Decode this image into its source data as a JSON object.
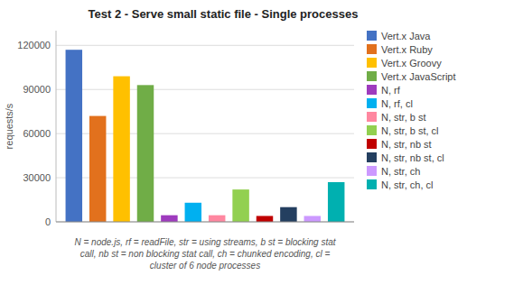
{
  "chart_data": {
    "type": "bar",
    "title": "Test 2 - Serve small static file - Single processes",
    "ylabel": "requests/s",
    "footnote": "N = node.js, rf = readFile, str = using streams, b st = blocking stat\ncall, nb st = non blocking stat call, ch = chunked encoding, cl =\ncluster of 6 node processes",
    "categories": [
      null
    ],
    "series": [
      {
        "name": "Vert.x Java",
        "color": "#4472C4",
        "values": [
          117000
        ]
      },
      {
        "name": "Vert.x Ruby",
        "color": "#E2711D",
        "values": [
          72000
        ]
      },
      {
        "name": "Vert.x Groovy",
        "color": "#FFC000",
        "values": [
          99000
        ]
      },
      {
        "name": "Vert.x JavaScript",
        "color": "#70AD47",
        "values": [
          93000
        ]
      },
      {
        "name": "N, rf",
        "color": "#9E3BBE",
        "values": [
          4500
        ]
      },
      {
        "name": "N, rf, cl",
        "color": "#00B0F0",
        "values": [
          13000
        ]
      },
      {
        "name": "N, str, b st",
        "color": "#FF87A0",
        "values": [
          4500
        ]
      },
      {
        "name": "N, str, b st, cl",
        "color": "#92D050",
        "values": [
          22000
        ]
      },
      {
        "name": "N, str, nb st",
        "color": "#C00000",
        "values": [
          4000
        ]
      },
      {
        "name": "N, str, nb st, cl",
        "color": "#243F60",
        "values": [
          10000
        ]
      },
      {
        "name": "N, str, ch",
        "color": "#CC99FF",
        "values": [
          4000
        ]
      },
      {
        "name": "N, str, ch, cl",
        "color": "#00B0B0",
        "values": [
          27000
        ]
      }
    ],
    "ylim": [
      0,
      130000
    ],
    "yticks": [
      0,
      30000,
      60000,
      90000,
      120000
    ],
    "grid": true,
    "legend": "right",
    "tick_labels": "y"
  }
}
